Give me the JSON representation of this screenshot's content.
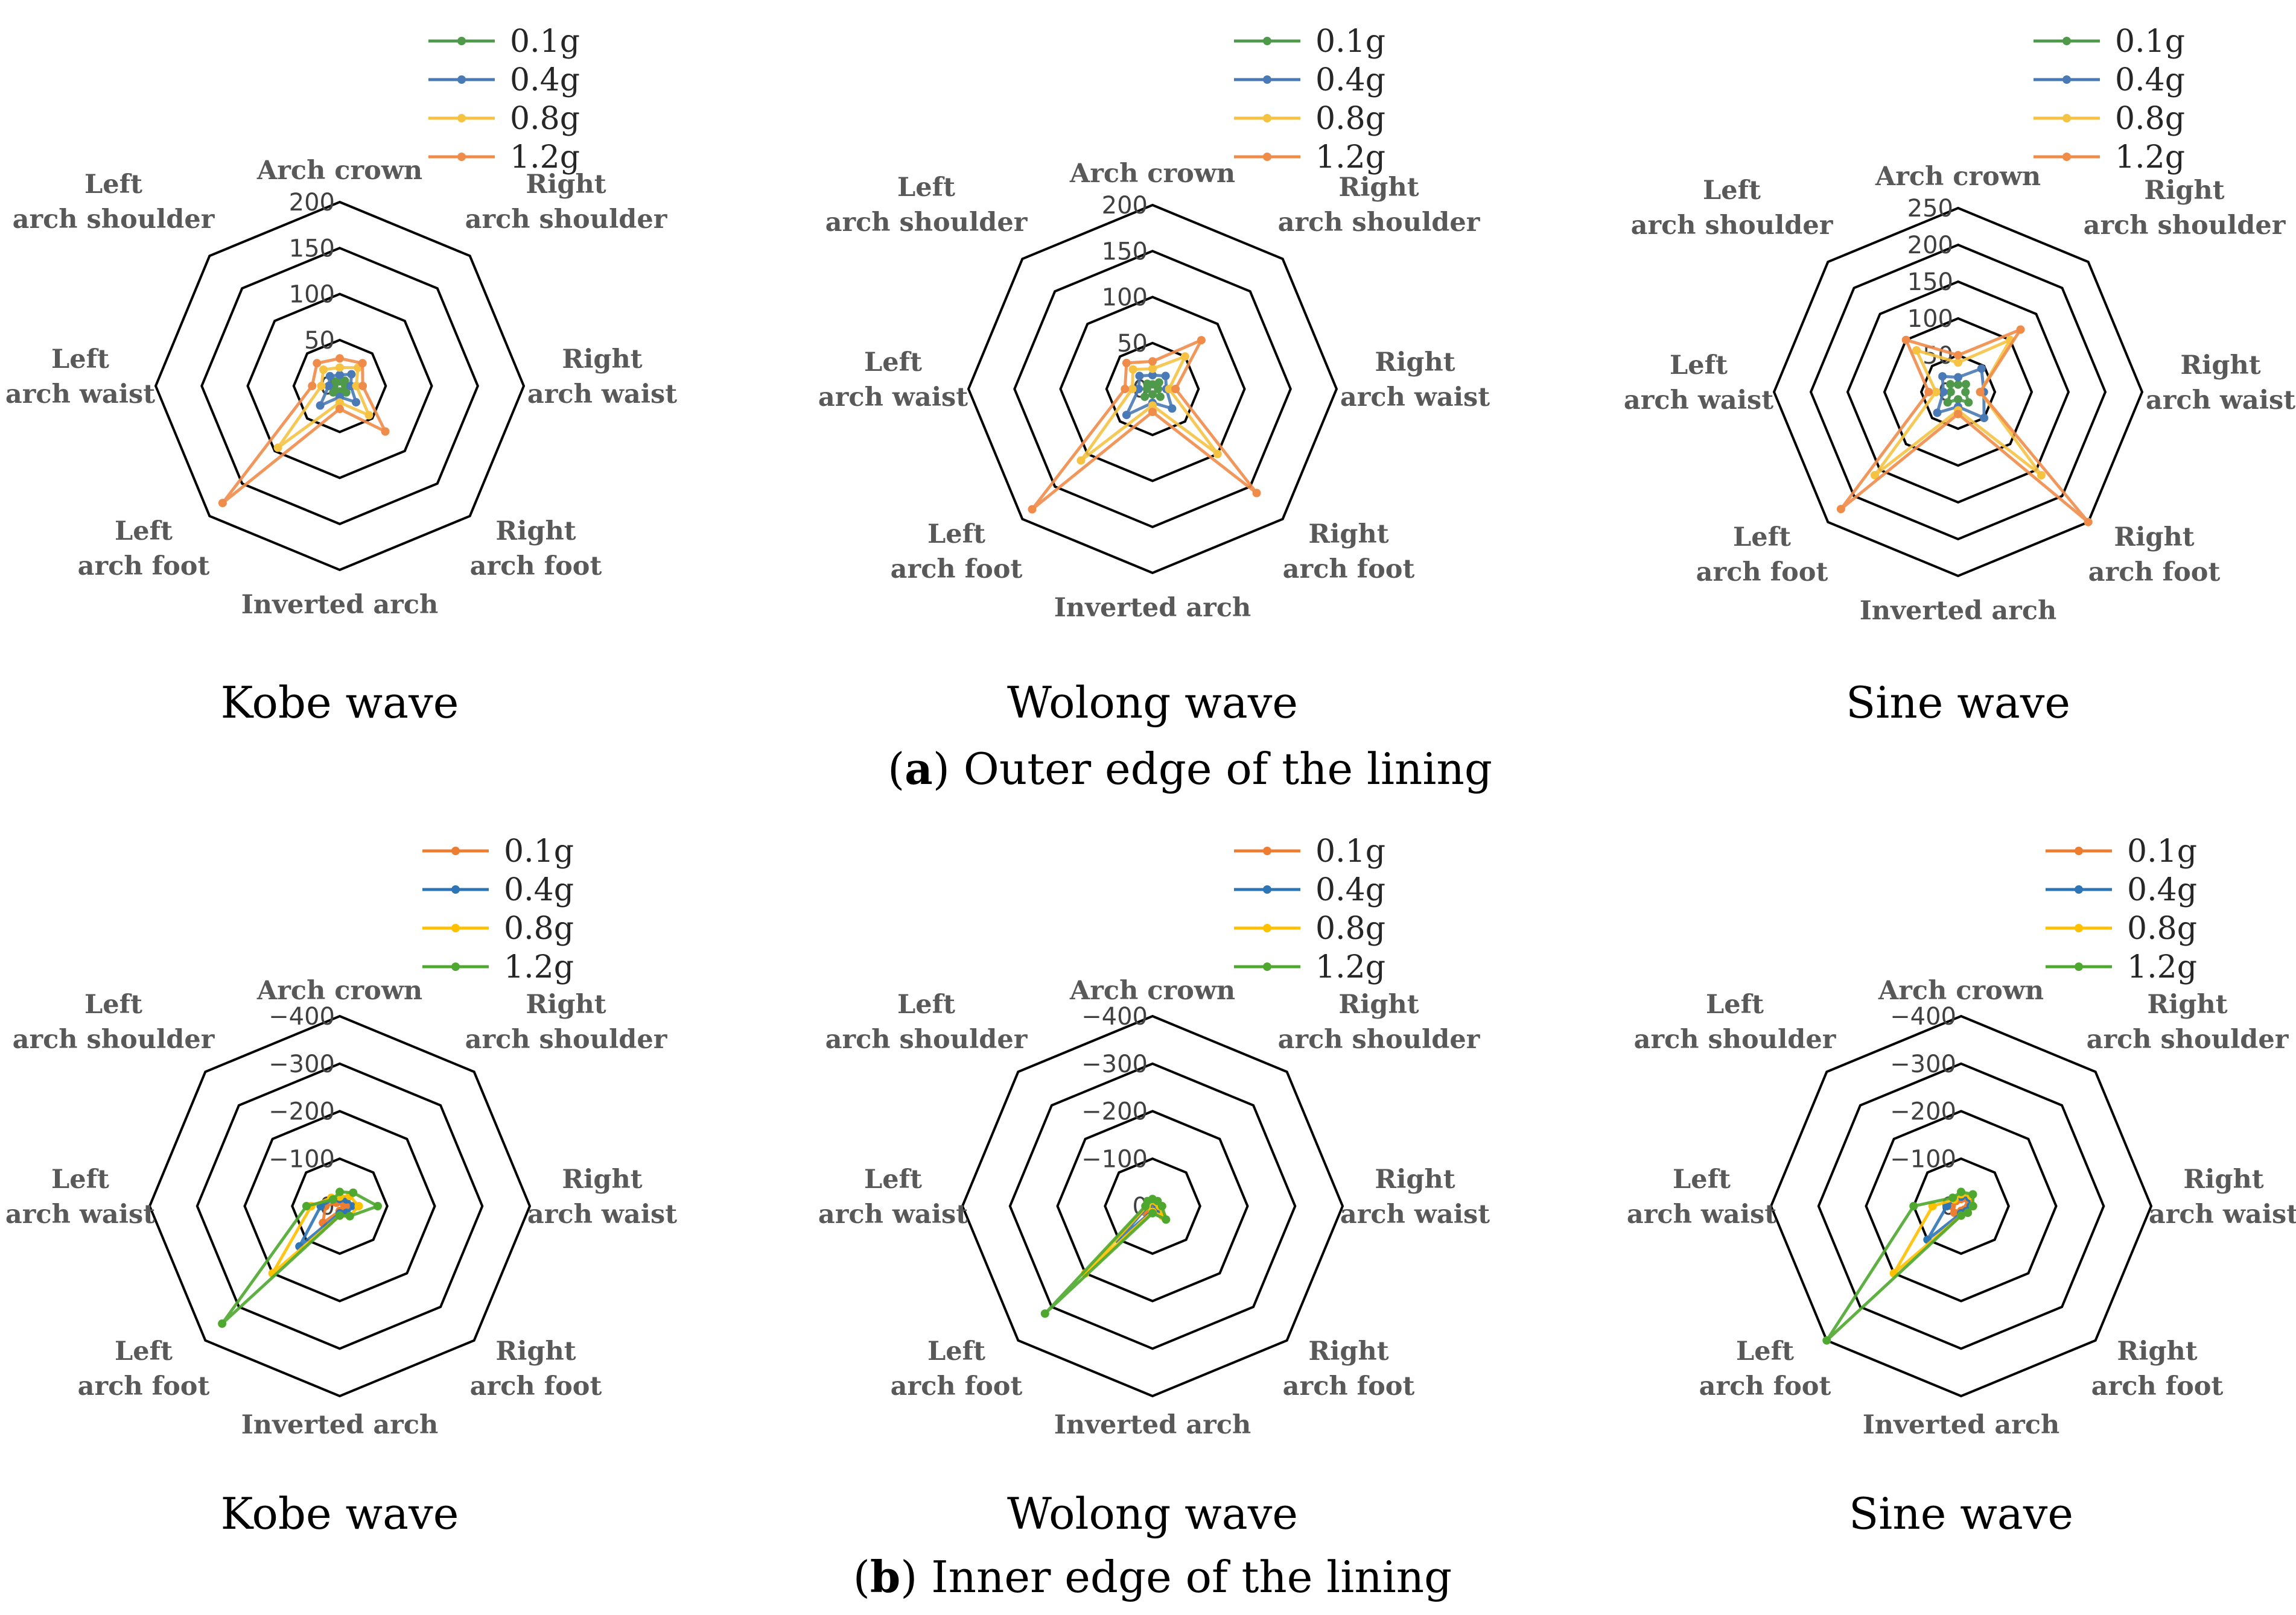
{
  "captions": {
    "a": {
      "letter": "a",
      "text": " Outer edge of the lining"
    },
    "b": {
      "letter": "b",
      "text": " Inner edge of the lining"
    }
  },
  "colors": {
    "0.1g_a": "#4e9a4a",
    "0.4g_a": "#4a7ab5",
    "0.8g_a": "#f5c242",
    "1.2g_a": "#ef8c4a",
    "0.1g_b": "#ed7d31",
    "0.4g_b": "#2e75b6",
    "0.8g_b": "#ffc000",
    "1.2g_b": "#4ea72e",
    "grid": "#000000"
  },
  "chart_data": [
    {
      "type": "radar",
      "id": "a-kobe",
      "title": "Kobe wave",
      "categories": [
        "Arch crown",
        "Right arch shoulder",
        "Right arch waist",
        "Right arch foot",
        "Inverted arch",
        "Left arch foot",
        "Left arch waist",
        "Left arch shoulder"
      ],
      "ticks": [
        "0",
        "50",
        "100",
        "150",
        "200"
      ],
      "rmin": 0,
      "rmax": 200,
      "series": [
        {
          "name": "0.1g",
          "color": "#4e9a4a",
          "values": [
            5,
            8,
            6,
            10,
            6,
            10,
            6,
            7
          ]
        },
        {
          "name": "0.4g",
          "color": "#4a7ab5",
          "values": [
            12,
            18,
            12,
            25,
            12,
            30,
            12,
            15
          ]
        },
        {
          "name": "0.8g",
          "color": "#f5c242",
          "values": [
            20,
            28,
            18,
            45,
            18,
            95,
            20,
            25
          ]
        },
        {
          "name": "1.2g",
          "color": "#ef8c4a",
          "values": [
            30,
            35,
            25,
            70,
            25,
            180,
            30,
            35
          ]
        }
      ]
    },
    {
      "type": "radar",
      "id": "a-wolong",
      "title": "Wolong wave",
      "categories": [
        "Arch crown",
        "Right arch shoulder",
        "Right arch waist",
        "Right arch foot",
        "Inverted arch",
        "Left arch foot",
        "Left arch waist",
        "Left arch shoulder"
      ],
      "ticks": [
        "0",
        "50",
        "100",
        "150",
        "200"
      ],
      "rmin": 0,
      "rmax": 200,
      "series": [
        {
          "name": "0.1g",
          "color": "#4e9a4a",
          "values": [
            5,
            10,
            6,
            12,
            6,
            12,
            6,
            8
          ]
        },
        {
          "name": "0.4g",
          "color": "#4a7ab5",
          "values": [
            15,
            20,
            15,
            30,
            15,
            40,
            15,
            20
          ]
        },
        {
          "name": "0.8g",
          "color": "#f5c242",
          "values": [
            22,
            50,
            18,
            100,
            18,
            110,
            22,
            30
          ]
        },
        {
          "name": "1.2g",
          "color": "#ef8c4a",
          "values": [
            30,
            75,
            25,
            160,
            25,
            185,
            30,
            40
          ]
        }
      ]
    },
    {
      "type": "radar",
      "id": "a-sine",
      "title": "Sine wave",
      "categories": [
        "Arch crown",
        "Right arch shoulder",
        "Right arch waist",
        "Right arch foot",
        "Inverted arch",
        "Left arch foot",
        "Left arch waist",
        "Left arch shoulder"
      ],
      "ticks": [
        "0",
        "50",
        "100",
        "150",
        "200",
        "250"
      ],
      "rmin": 0,
      "rmax": 250,
      "series": [
        {
          "name": "0.1g",
          "color": "#4e9a4a",
          "values": [
            10,
            15,
            10,
            20,
            10,
            20,
            10,
            15
          ]
        },
        {
          "name": "0.4g",
          "color": "#4a7ab5",
          "values": [
            20,
            45,
            35,
            50,
            20,
            40,
            20,
            30
          ]
        },
        {
          "name": "0.8g",
          "color": "#f5c242",
          "values": [
            40,
            100,
            30,
            160,
            25,
            160,
            30,
            80
          ]
        },
        {
          "name": "1.2g",
          "color": "#ef8c4a",
          "values": [
            50,
            120,
            30,
            250,
            30,
            225,
            40,
            100
          ]
        }
      ]
    },
    {
      "type": "radar",
      "id": "b-kobe",
      "title": "Kobe wave",
      "categories": [
        "Arch crown",
        "Right arch shoulder",
        "Right arch waist",
        "Right arch foot",
        "Inverted arch",
        "Left arch foot",
        "Left arch waist",
        "Left arch shoulder"
      ],
      "ticks": [
        "0",
        "−100",
        "−200",
        "−300",
        "−400"
      ],
      "rmin": 0,
      "rmax": -400,
      "series": [
        {
          "name": "0.1g",
          "color": "#ed7d31",
          "values": [
            -10,
            -10,
            -20,
            -10,
            -10,
            -50,
            -30,
            -10
          ]
        },
        {
          "name": "0.4g",
          "color": "#2e75b6",
          "values": [
            -15,
            -20,
            -30,
            -20,
            -15,
            -120,
            -40,
            -20
          ]
        },
        {
          "name": "0.8g",
          "color": "#ffc000",
          "values": [
            -20,
            -30,
            -40,
            -30,
            -20,
            -200,
            -60,
            -25
          ]
        },
        {
          "name": "1.2g",
          "color": "#4ea72e",
          "values": [
            -30,
            -40,
            -80,
            -30,
            -20,
            -350,
            -70,
            -20
          ]
        }
      ]
    },
    {
      "type": "radar",
      "id": "b-wolong",
      "title": "Wolong wave",
      "categories": [
        "Arch crown",
        "Right arch shoulder",
        "Right arch waist",
        "Right arch foot",
        "Inverted arch",
        "Left arch foot",
        "Left arch waist",
        "Left arch shoulder"
      ],
      "ticks": [
        "0",
        "−100",
        "−200",
        "−300",
        "−400"
      ],
      "rmin": 0,
      "rmax": -400,
      "series": [
        {
          "name": "0.1g",
          "color": "#ed7d31",
          "values": [
            -5,
            -5,
            -5,
            -5,
            -5,
            -20,
            -5,
            -5
          ]
        },
        {
          "name": "0.4g",
          "color": "#2e75b6",
          "values": [
            -10,
            -10,
            -10,
            -20,
            -10,
            -100,
            -10,
            -10
          ]
        },
        {
          "name": "0.8g",
          "color": "#ffc000",
          "values": [
            -12,
            -12,
            -15,
            -30,
            -12,
            -200,
            -12,
            -12
          ]
        },
        {
          "name": "1.2g",
          "color": "#4ea72e",
          "values": [
            -15,
            -15,
            -20,
            -40,
            -15,
            -320,
            -15,
            -15
          ]
        }
      ]
    },
    {
      "type": "radar",
      "id": "b-sine",
      "title": "Sine wave",
      "categories": [
        "Arch crown",
        "Right arch shoulder",
        "Right arch waist",
        "Right arch foot",
        "Inverted arch",
        "Left arch foot",
        "Left arch waist",
        "Left arch shoulder"
      ],
      "ticks": [
        "0",
        "−100",
        "−200",
        "−300",
        "−400"
      ],
      "rmin": 0,
      "rmax": -400,
      "series": [
        {
          "name": "0.1g",
          "color": "#ed7d31",
          "values": [
            -15,
            -20,
            -15,
            -10,
            -10,
            -20,
            -20,
            -15
          ]
        },
        {
          "name": "0.4g",
          "color": "#2e75b6",
          "values": [
            -20,
            -25,
            -20,
            -15,
            -15,
            -100,
            -30,
            -20
          ]
        },
        {
          "name": "0.8g",
          "color": "#ffc000",
          "values": [
            -25,
            -30,
            -25,
            -20,
            -20,
            -200,
            -60,
            -20
          ]
        },
        {
          "name": "1.2g",
          "color": "#4ea72e",
          "values": [
            -30,
            -35,
            -25,
            -20,
            -20,
            -400,
            -100,
            -25
          ]
        }
      ]
    }
  ]
}
